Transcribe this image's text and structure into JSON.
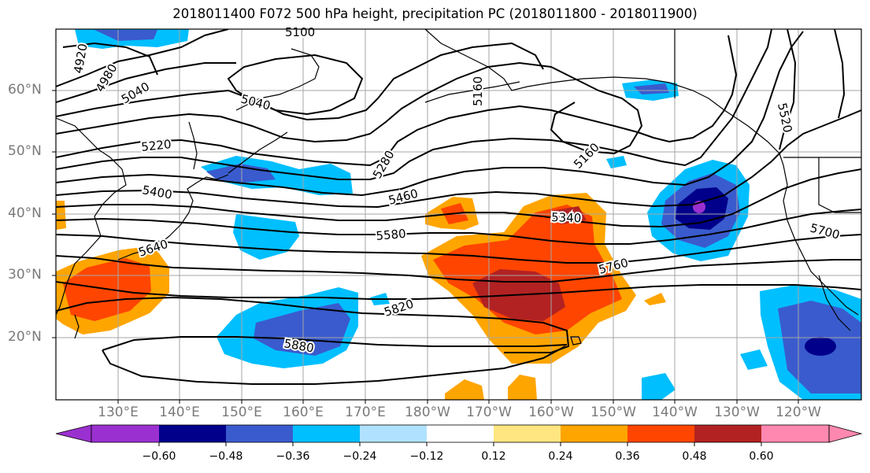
{
  "title": "2018011400 F072 500 hPa height, precipitation PC (2018011800 - 2018011900)",
  "lat_labels": [
    "60°N",
    "50°N",
    "40°N",
    "30°N",
    "20°N"
  ],
  "lon_labels": [
    "130°E",
    "140°E",
    "150°E",
    "160°E",
    "170°E",
    "180°W",
    "170°W",
    "160°W",
    "150°W",
    "140°W",
    "130°W",
    "120°W"
  ],
  "contour_labels": [
    "4920",
    "4980",
    "5040",
    "5040",
    "5100",
    "5160",
    "5160",
    "5220",
    "5280",
    "5340",
    "5400",
    "5460",
    "5520",
    "5580",
    "5640",
    "5700",
    "5760",
    "5820",
    "5880"
  ],
  "colorbar": {
    "ticks": [
      "−0.60",
      "−0.48",
      "−0.36",
      "−0.24",
      "−0.12",
      "0.12",
      "0.24",
      "0.36",
      "0.48",
      "0.60"
    ],
    "colors": [
      "#9b30d0",
      "#00008b",
      "#3a5bcd",
      "#00bfff",
      "#b0e2ff",
      "#ffffff",
      "#ffe680",
      "#ffa500",
      "#ff4500",
      "#b22222",
      "#ff88b0"
    ]
  }
}
